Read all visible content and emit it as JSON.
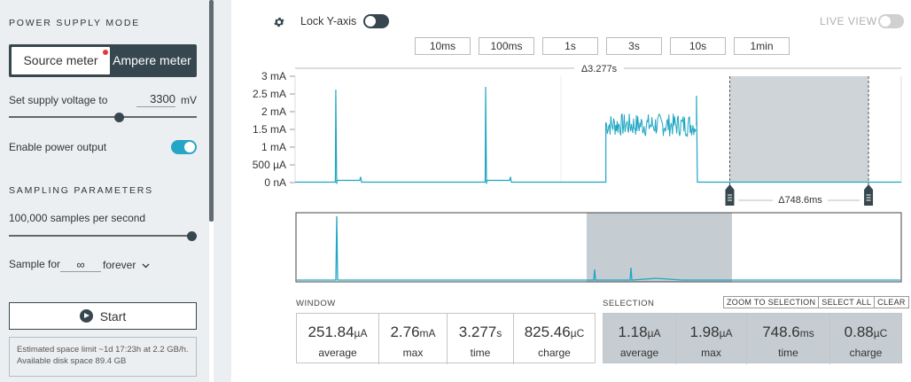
{
  "sidebar": {
    "power_supply_title": "POWER SUPPLY MODE",
    "mode_source": "Source meter",
    "mode_ampere": "Ampere meter",
    "voltage_label": "Set supply voltage to",
    "voltage_value": "3300",
    "voltage_unit": "mV",
    "voltage_slider_fraction": 0.59,
    "power_output_label": "Enable power output",
    "power_output_on": true,
    "sampling_title": "SAMPLING PARAMETERS",
    "rate_label": "100,000 samples per second",
    "rate_slider_fraction": 1.0,
    "sample_for_label": "Sample for",
    "sample_for_value": "∞",
    "sample_for_unit": "forever",
    "start_label": "Start",
    "disk_info": "Estimated space limit ~1d 17:23h at 2.2 GB/h. Available disk space 89.4 GB"
  },
  "toolbar": {
    "lock_label": "Lock Y-axis",
    "live_label": "LIVE VIEW",
    "time_buttons": [
      "10ms",
      "100ms",
      "1s",
      "3s",
      "10s",
      "1min"
    ]
  },
  "chart_data": {
    "type": "line",
    "window_span_label": "Δ3.277s",
    "window_span_s": 3.277,
    "selection_span_label": "Δ748.6ms",
    "selection_start_s": 2.35,
    "selection_end_s": 3.1,
    "y_tick_labels": [
      "3 mA",
      "2.5 mA",
      "2 mA",
      "1.5 mA",
      "1 mA",
      "500 µA",
      "0 nA"
    ],
    "y_range_mA": [
      0,
      3
    ],
    "spikes": [
      {
        "t_s": 0.22,
        "peak_mA": 2.62
      },
      {
        "t_s": 1.03,
        "peak_mA": 2.7
      },
      {
        "t_s": 2.17,
        "peak_mA": 2.45
      }
    ],
    "burst": {
      "start_s": 1.68,
      "end_s": 2.17,
      "low_mA": 1.3,
      "high_mA": 1.95
    },
    "color": "#1fa6c4"
  },
  "window_stats": {
    "title": "WINDOW",
    "average": {
      "value": "251.84",
      "unit": "µA",
      "label": "average"
    },
    "max": {
      "value": "2.76",
      "unit": "mA",
      "label": "max"
    },
    "time": {
      "value": "3.277",
      "unit": "s",
      "label": "time"
    },
    "charge": {
      "value": "825.46",
      "unit": "µC",
      "label": "charge"
    }
  },
  "selection_stats": {
    "title": "SELECTION",
    "zoom_label": "ZOOM TO SELECTION",
    "select_all_label": "SELECT ALL",
    "clear_label": "CLEAR",
    "average": {
      "value": "1.18",
      "unit": "µA",
      "label": "average"
    },
    "max": {
      "value": "1.98",
      "unit": "µA",
      "label": "max"
    },
    "time": {
      "value": "748.6",
      "unit": "ms",
      "label": "time"
    },
    "charge": {
      "value": "0.88",
      "unit": "µC",
      "label": "charge"
    }
  }
}
